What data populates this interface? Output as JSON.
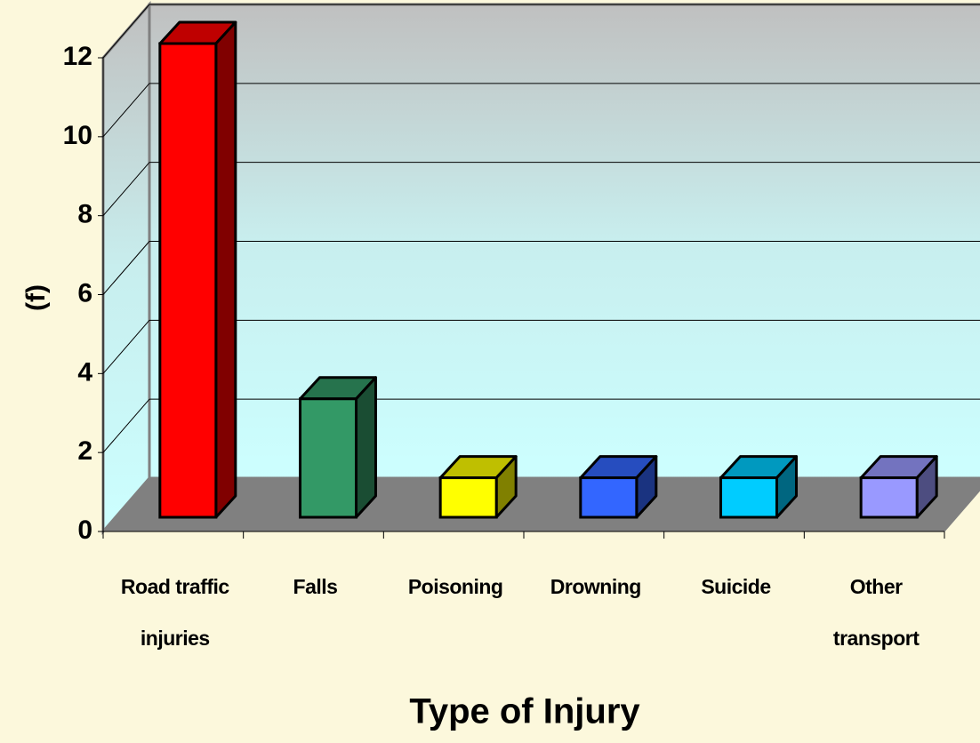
{
  "chart_data": {
    "type": "bar3d",
    "x_label": "Type of Injury",
    "y_label": "(f)",
    "categories": [
      "Road traffic injuries",
      "Falls",
      "Poisoning",
      "Drowning",
      "Suicide",
      "Other transport"
    ],
    "values": [
      12,
      3,
      1,
      1,
      1,
      1
    ],
    "colors": [
      "#ff0000",
      "#339966",
      "#ffff00",
      "#3366ff",
      "#00ccff",
      "#9999ff"
    ],
    "ylim": [
      0,
      12
    ],
    "yticks": [
      0,
      2,
      4,
      6,
      8,
      10,
      12
    ],
    "grid": true
  }
}
